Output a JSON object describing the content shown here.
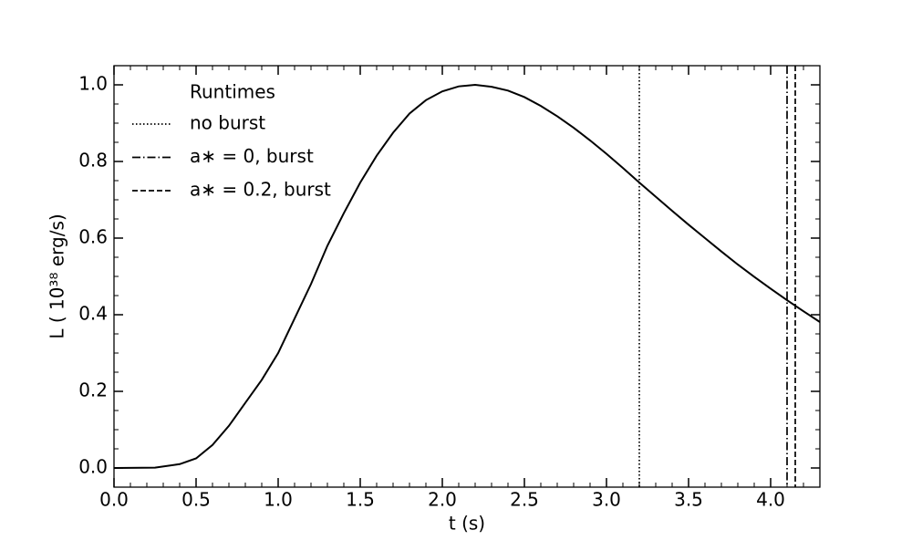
{
  "chart_data": {
    "type": "line",
    "x": [
      0,
      0.25,
      0.4,
      0.5,
      0.6,
      0.7,
      0.8,
      0.9,
      1.0,
      1.1,
      1.2,
      1.3,
      1.4,
      1.5,
      1.6,
      1.7,
      1.8,
      1.9,
      2.0,
      2.1,
      2.2,
      2.3,
      2.4,
      2.5,
      2.6,
      2.7,
      2.8,
      2.9,
      3.0,
      3.1,
      3.2,
      3.3,
      3.4,
      3.5,
      3.6,
      3.7,
      3.8,
      3.9,
      4.0,
      4.1,
      4.2,
      4.3
    ],
    "values": [
      0,
      0.001,
      0.01,
      0.025,
      0.06,
      0.11,
      0.17,
      0.23,
      0.3,
      0.39,
      0.48,
      0.58,
      0.665,
      0.745,
      0.815,
      0.875,
      0.925,
      0.96,
      0.983,
      0.996,
      1.0,
      0.995,
      0.985,
      0.968,
      0.945,
      0.918,
      0.888,
      0.855,
      0.82,
      0.783,
      0.745,
      0.708,
      0.671,
      0.635,
      0.6,
      0.565,
      0.531,
      0.499,
      0.468,
      0.438,
      0.409,
      0.381
    ],
    "color": "#000000",
    "xlabel": "t (s)",
    "ylabel": "L ( 10³⁸ erg/s)",
    "xlim": [
      0,
      4.3
    ],
    "ylim": [
      -0.05,
      1.05
    ],
    "xticks": [
      {
        "value": 0,
        "label": "0.0"
      },
      0.5,
      {
        "value": 1,
        "label": "1.0"
      },
      1.5,
      {
        "value": 2,
        "label": "2.0"
      },
      2.5,
      {
        "value": 3,
        "label": "3.0"
      },
      3.5,
      {
        "value": 4,
        "label": "4.0"
      }
    ],
    "yticks": [
      {
        "value": 0,
        "label": "0.0"
      },
      0.2,
      0.4,
      0.6,
      0.8,
      {
        "value": 1,
        "label": "1.0"
      }
    ],
    "legend_title": "Runtimes",
    "legend": "upper left",
    "vlines": [
      {
        "name": "no burst",
        "x": 3.2,
        "style": "dotted"
      },
      {
        "name": "a∗ = 0, burst",
        "x": 4.1,
        "style": "dashdot"
      },
      {
        "name": "a∗ = 0.2, burst",
        "x": 4.15,
        "style": "dashed"
      }
    ]
  }
}
